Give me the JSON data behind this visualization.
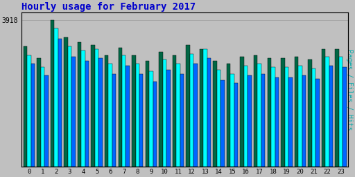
{
  "title": "Hourly usage for February 2017",
  "title_color": "#0000cc",
  "title_fontsize": 10,
  "ylabel_right": "Pages / Files / Hits",
  "ylabel_right_color": "#00aaaa",
  "background_color": "#c0c0c0",
  "plot_bg_color": "#c0c0c0",
  "ytick_label": "3918",
  "hours": [
    0,
    1,
    2,
    3,
    4,
    5,
    6,
    7,
    8,
    9,
    10,
    11,
    12,
    13,
    14,
    15,
    16,
    17,
    18,
    19,
    20,
    21,
    22,
    23
  ],
  "pages": [
    0.82,
    0.74,
    1.0,
    0.88,
    0.85,
    0.83,
    0.76,
    0.81,
    0.76,
    0.72,
    0.78,
    0.76,
    0.83,
    0.8,
    0.72,
    0.7,
    0.75,
    0.76,
    0.74,
    0.74,
    0.75,
    0.73,
    0.8,
    0.8
  ],
  "files": [
    0.76,
    0.68,
    0.94,
    0.82,
    0.79,
    0.8,
    0.7,
    0.76,
    0.7,
    0.65,
    0.73,
    0.7,
    0.77,
    0.8,
    0.66,
    0.63,
    0.69,
    0.7,
    0.68,
    0.68,
    0.69,
    0.67,
    0.75,
    0.75
  ],
  "hits": [
    0.7,
    0.62,
    0.87,
    0.75,
    0.72,
    0.74,
    0.63,
    0.69,
    0.63,
    0.58,
    0.66,
    0.63,
    0.7,
    0.74,
    0.59,
    0.57,
    0.62,
    0.63,
    0.61,
    0.61,
    0.62,
    0.6,
    0.69,
    0.68
  ],
  "pages_color": "#006644",
  "files_color": "#00ffff",
  "hits_color": "#0066ff",
  "bar_edge_color": "#000000",
  "ymax": 1.05,
  "ymin": 0.0,
  "bar_width": 0.28
}
